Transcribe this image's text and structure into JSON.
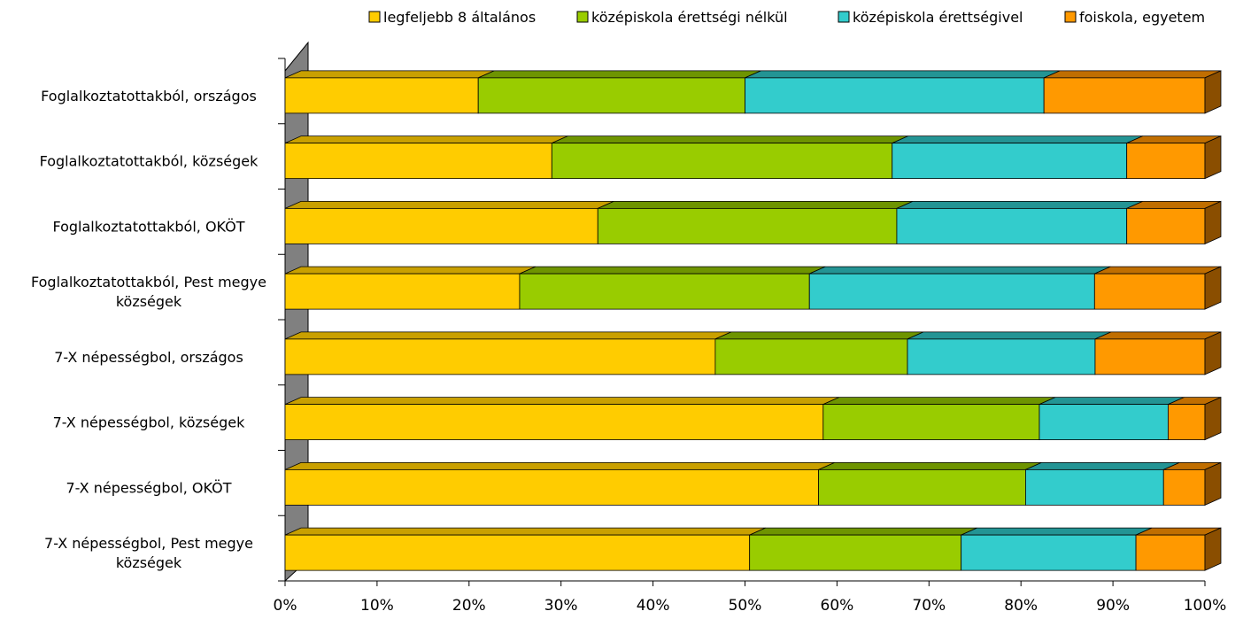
{
  "chart_data": {
    "type": "bar",
    "orientation": "horizontal",
    "stacked": "percent",
    "projection": "3d",
    "categories": [
      "Foglalkoztatottakból, országos",
      "Foglalkoztatottakból, községek",
      "Foglalkoztatottakból, OKÖT",
      "Foglalkoztatottakból, Pest megye községek",
      "7-X népességbol, országos",
      "7-X népességbol, községek",
      "7-X népességbol, OKÖT",
      "7-X  népességbol, Pest megye községek"
    ],
    "category_lines": [
      [
        "Foglalkoztatottakból, országos"
      ],
      [
        "Foglalkoztatottakból, községek"
      ],
      [
        "Foglalkoztatottakból, OKÖT"
      ],
      [
        "Foglalkoztatottakból, Pest megye",
        "községek"
      ],
      [
        "7-X népességbol, országos"
      ],
      [
        "7-X népességbol, községek"
      ],
      [
        "7-X népességbol, OKÖT"
      ],
      [
        "7-X  népességbol, Pest megye",
        "községek"
      ]
    ],
    "series": [
      {
        "name": "legfeljebb 8 általános",
        "color": "#FFCC00",
        "top_color": "#C9A000",
        "side_color": "#8A6E00",
        "values": [
          21,
          29,
          34,
          25.5,
          47,
          58.5,
          58,
          50.5
        ]
      },
      {
        "name": "középiskola érettségi nélkül",
        "color": "#99CC00",
        "top_color": "#6E9400",
        "side_color": "#4D6800",
        "values": [
          29,
          37,
          32.5,
          31.5,
          21,
          23.5,
          22.5,
          23
        ]
      },
      {
        "name": "középiskola érettségivel",
        "color": "#33CCCC",
        "top_color": "#239494",
        "side_color": "#186868",
        "values": [
          32.5,
          25.5,
          25,
          31,
          20.5,
          14,
          15,
          19
        ]
      },
      {
        "name": "foiskola, egyetem",
        "color": "#FF9900",
        "top_color": "#C06E00",
        "side_color": "#8A4E00",
        "values": [
          17.5,
          8.5,
          8.5,
          12,
          12,
          4,
          4.5,
          7.5
        ]
      }
    ],
    "xlim": [
      0,
      100
    ],
    "xticks": [
      "0%",
      "10%",
      "20%",
      "30%",
      "40%",
      "50%",
      "60%",
      "70%",
      "80%",
      "90%",
      "100%"
    ],
    "legend_position": "top",
    "grid": false,
    "wall_color": "#808080"
  }
}
